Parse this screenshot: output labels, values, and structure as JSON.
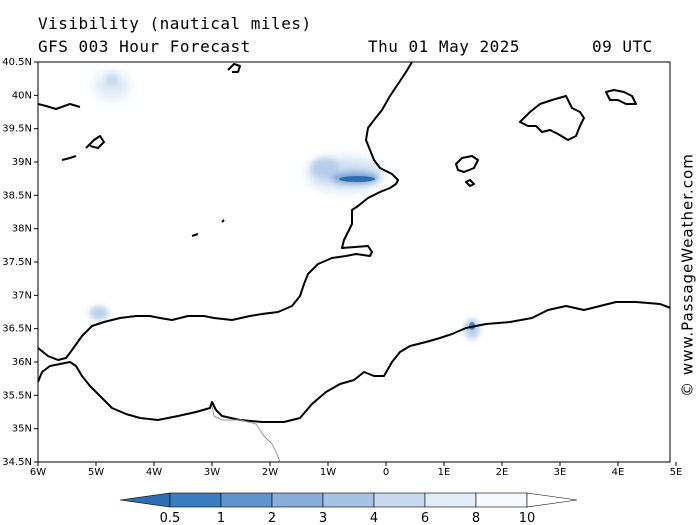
{
  "header": {
    "title": "Visibility (nautical miles)",
    "subtitle": "GFS 003 Hour Forecast",
    "date": "Thu 01 May 2025",
    "time": "09 UTC"
  },
  "map": {
    "lat_labels": [
      "40.5N",
      "40N",
      "39.5N",
      "39N",
      "38.5N",
      "38N",
      "37.5N",
      "37N",
      "36.5N",
      "36N",
      "35.5N",
      "35N",
      "34.5N"
    ],
    "lon_labels": [
      "6W",
      "5W",
      "4W",
      "3W",
      "2W",
      "1W",
      "0",
      "1E",
      "2E",
      "3E",
      "4E",
      "5E"
    ],
    "colors": {
      "coast": "#000000",
      "border": "#999999",
      "fog_dark": "#2f6db3",
      "fog_light": "#c9dcf0"
    }
  },
  "legend": {
    "values": [
      "0.5",
      "1",
      "2",
      "3",
      "4",
      "6",
      "8",
      "10"
    ],
    "colors": [
      "#2e6fb4",
      "#3b7ec0",
      "#5f95cc",
      "#87add8",
      "#a7c3e4",
      "#c7d9ee",
      "#e2ecf7",
      "#f6f9fd",
      "#ffffff"
    ]
  },
  "credit": "© www.PassageWeather.com"
}
